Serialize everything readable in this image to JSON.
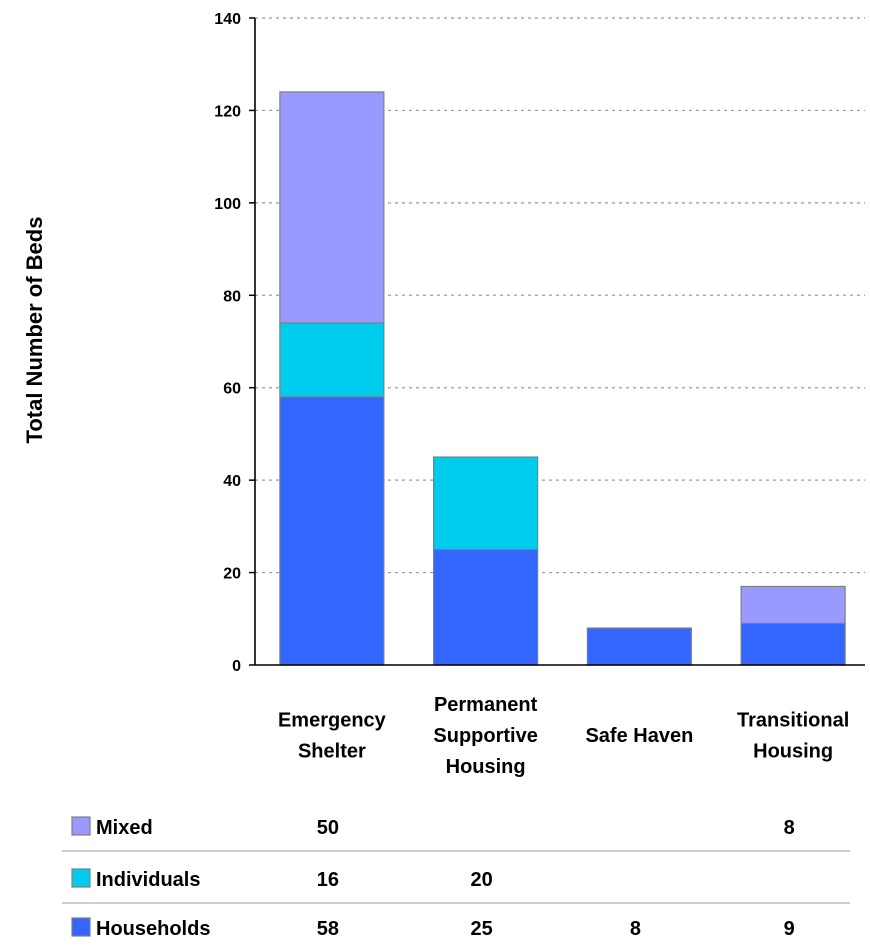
{
  "chart_data": {
    "type": "bar",
    "stacked": true,
    "title": "",
    "xlabel": "",
    "ylabel": "Total Number of Beds",
    "ylim": [
      0,
      140
    ],
    "yticks": [
      0,
      20,
      40,
      60,
      80,
      100,
      120,
      140
    ],
    "grid": true,
    "categories": [
      [
        "Emergency",
        "Shelter"
      ],
      [
        "Permanent",
        "Supportive",
        "Housing"
      ],
      [
        "Safe Haven"
      ],
      [
        "Transitional",
        "Housing"
      ]
    ],
    "series": [
      {
        "name": "Households",
        "color": "#3366ff",
        "values": [
          58,
          25,
          8,
          9
        ]
      },
      {
        "name": "Individuals",
        "color": "#00ccee",
        "values": [
          16,
          20,
          null,
          null
        ]
      },
      {
        "name": "Mixed",
        "color": "#9999ff",
        "values": [
          50,
          null,
          null,
          8
        ]
      }
    ],
    "data_table": {
      "row_order": [
        "Mixed",
        "Individuals",
        "Households"
      ]
    }
  }
}
